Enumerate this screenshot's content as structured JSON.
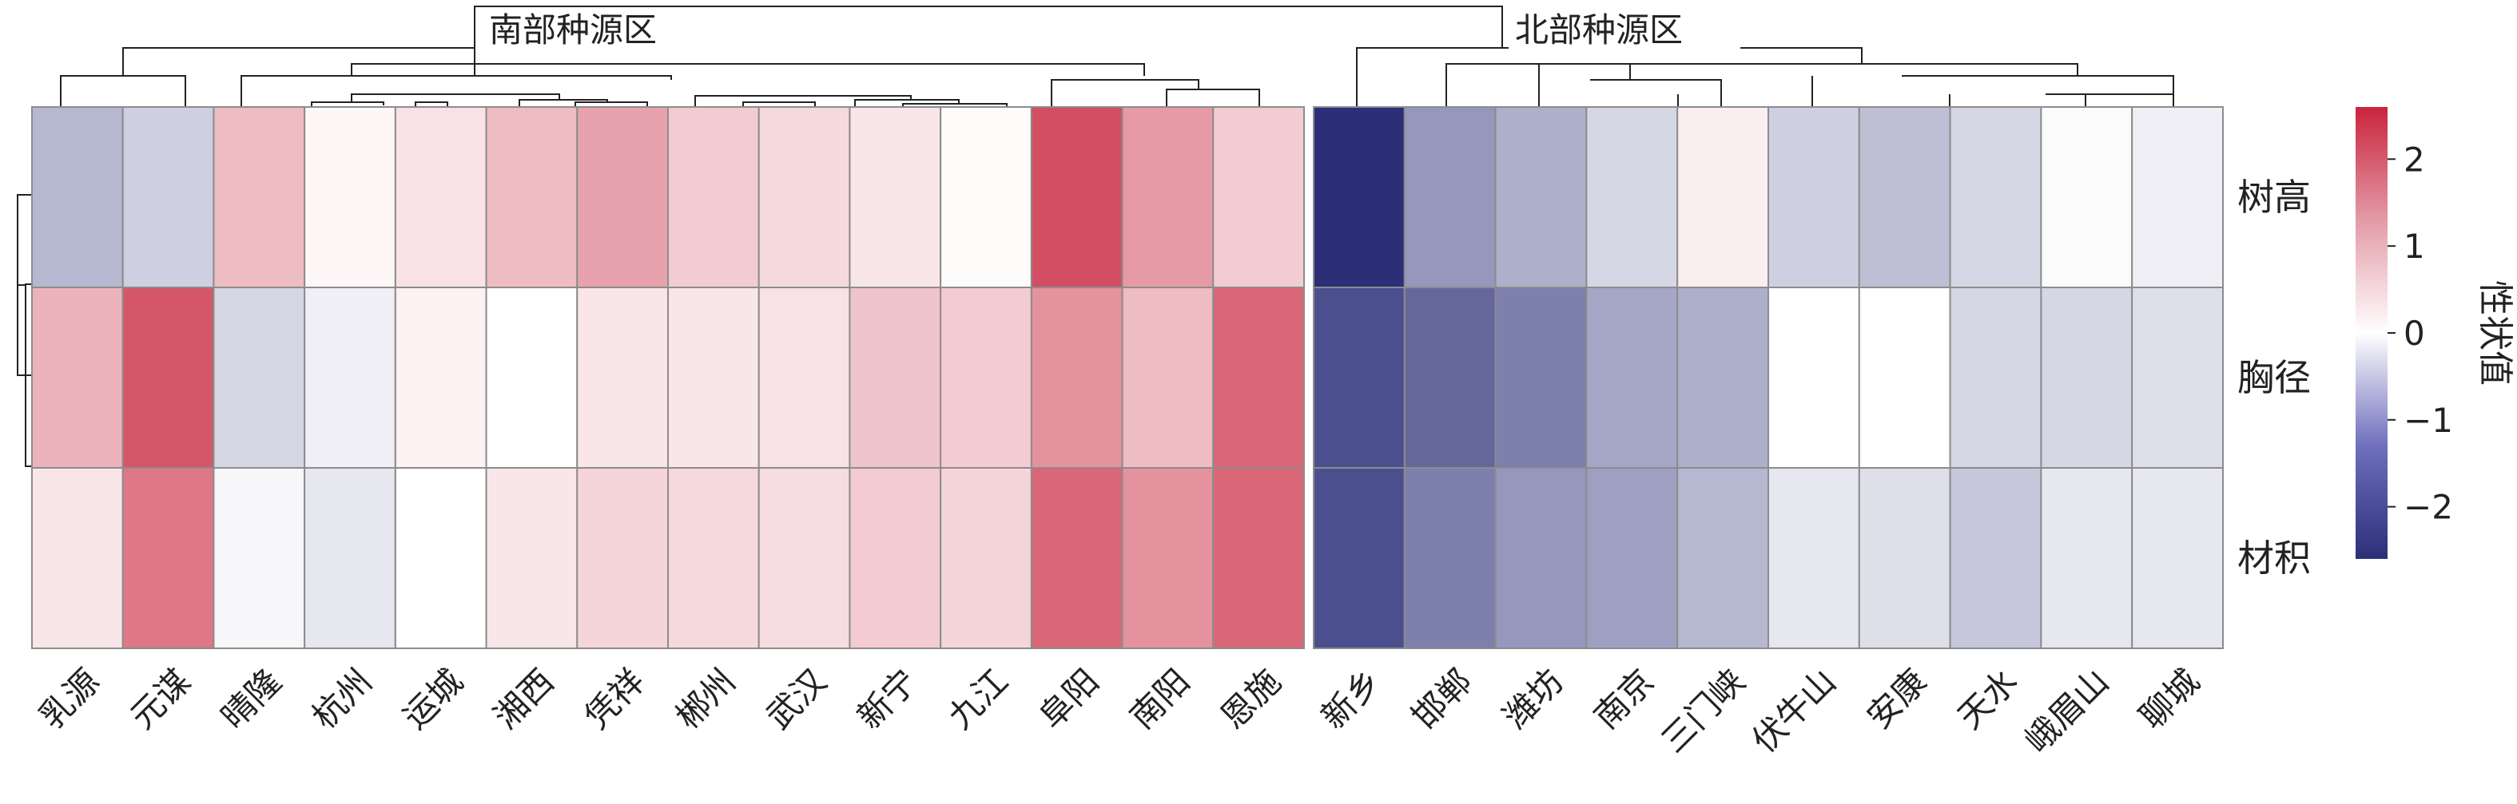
{
  "chart_data": {
    "type": "heatmap",
    "groups": [
      {
        "label": "南部种源区",
        "columns": [
          "乳源",
          "元谋",
          "晴隆",
          "杭州",
          "运城",
          "湘西",
          "凭祥",
          "郴州",
          "武汉",
          "新宁",
          "九江",
          "阜阳",
          "南阳",
          "恩施"
        ]
      },
      {
        "label": "北部种源区",
        "columns": [
          "新乡",
          "邯郸",
          "潍坊",
          "南京",
          "三门峡",
          "伏牛山",
          "安康",
          "天水",
          "峨眉山",
          "聊城"
        ]
      }
    ],
    "rows": [
      "树高",
      "胸径",
      "材积"
    ],
    "values": [
      [
        -0.9,
        -0.6,
        0.8,
        0.1,
        0.35,
        0.8,
        1.1,
        0.6,
        0.45,
        0.3,
        0.05,
        2.1,
        1.2,
        0.6,
        -2.6,
        -1.3,
        -1.0,
        -0.5,
        0.2,
        -0.6,
        -0.8,
        -0.5,
        -0.05,
        -0.2
      ],
      [
        0.9,
        2.0,
        -0.5,
        -0.2,
        0.15,
        0.0,
        0.3,
        0.3,
        0.35,
        0.7,
        0.6,
        1.3,
        0.8,
        1.8,
        -2.2,
        -1.9,
        -1.6,
        -1.1,
        -1.0,
        0.0,
        0.0,
        -0.5,
        -0.5,
        -0.4
      ],
      [
        0.3,
        1.6,
        -0.1,
        -0.3,
        0.0,
        0.3,
        0.5,
        0.45,
        0.4,
        0.6,
        0.5,
        1.8,
        1.3,
        1.8,
        -2.2,
        -1.6,
        -1.3,
        -1.2,
        -0.9,
        -0.3,
        -0.4,
        -0.7,
        -0.3,
        -0.3
      ]
    ],
    "colorbar": {
      "label": "性状值",
      "ticks": [
        2,
        1,
        0,
        -1,
        -2
      ],
      "tick_labels": [
        "2",
        "1",
        "0",
        "−1",
        "−2"
      ],
      "range": [
        -2.6,
        2.6
      ],
      "low_color": "#2c2f78",
      "mid_color": "#ffffff",
      "high_color": "#c9243c"
    }
  }
}
